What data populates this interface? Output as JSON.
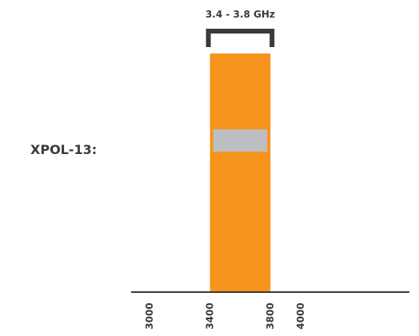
{
  "product_label": "XPOL-13:",
  "colors": {
    "band": "#f7941d",
    "marker": "#bcbec0",
    "bracket": "#3a3a3a",
    "axis": "#3a3a3a",
    "text": "#3a3a3a"
  },
  "chart_data": {
    "type": "bar",
    "orientation": "frequency-band",
    "x_unit": "MHz",
    "xlim": [
      3000,
      4000
    ],
    "ticks": [
      3000,
      3400,
      3800,
      4000
    ],
    "bands": [
      {
        "label": "3.4 - 3.8 GHz",
        "start": 3400,
        "end": 3800
      }
    ],
    "grid": false
  }
}
